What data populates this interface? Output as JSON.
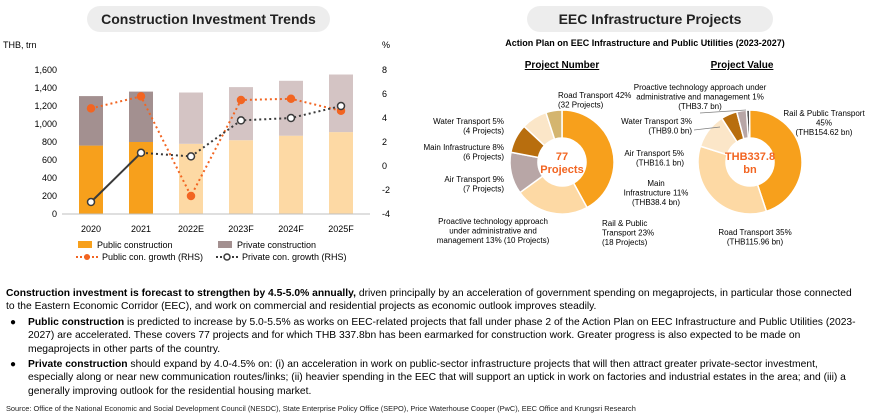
{
  "left_panel": {
    "title": "Construction Investment Trends",
    "left_axis_unit": "THB, trn",
    "right_axis_unit": "%",
    "legend": {
      "public_construction": "Public construction",
      "private_construction": "Private construction",
      "public_growth": "Public con. growth (RHS)",
      "private_growth": "Private con. growth (RHS)"
    }
  },
  "right_panel": {
    "title": "EEC Infrastructure Projects",
    "subtitle": "Action Plan on EEC Infrastructure and Public Utilities (2023-2027)",
    "number_heading": "Project Number",
    "value_heading": "Project Value",
    "number_center_line1": "77",
    "number_center_line2": "Projects",
    "value_center_line1": "THB337.8",
    "value_center_line2": "bn",
    "number_labels": [
      [
        "Road Transport 42%",
        "(32 Projects)"
      ],
      [
        "Rail & Public",
        "Transport 23%",
        "(18 Projects)"
      ],
      [
        "Proactive technology approach",
        "under administrative and",
        "management 13%  (10 Projects)"
      ],
      [
        "Air Transport 9%",
        "(7 Projects)"
      ],
      [
        "Main Infrastructure 8%",
        "(6 Projects)"
      ],
      [
        "Water Transport 5%",
        "(4 Projects)"
      ]
    ],
    "value_labels": [
      [
        "Proactive technology approach under",
        "administrative and management  1%",
        "(THB3.7 bn)"
      ],
      [
        "Rail & Public Transport",
        "45%",
        "(THB154.62 bn)"
      ],
      [
        "Road Transport 35%",
        "(THB115.96 bn)"
      ],
      [
        "Main",
        "Infrastructure 11%",
        "(THB38.4 bn)"
      ],
      [
        "Air Transport 5%",
        "(THB16.1 bn)"
      ],
      [
        "Water Transport 3%",
        "(THB9.0 bn)"
      ]
    ]
  },
  "text": {
    "intro_bold": "Construction investment is forecast to strengthen by 4.5-5.0% annually,",
    "intro_rest": " driven principally by an acceleration of government spending on megaprojects, in particular those connected to the Eastern Economic Corridor (EEC), and work on commercial and residential projects as economic outlook improves steadily.",
    "bullet1_bold": "Public construction",
    "bullet1_rest": " is predicted to increase by 5.0-5.5% as works on EEC-related projects that fall under phase 2 of the Action Plan on EEC Infrastructure and Public Utilities (2023-2027) are accelerated. These covers 77 projects and for which THB 337.8bn has been earmarked for construction work. Greater progress is also expected to be made on megaprojects in other parts of the country.",
    "bullet2_bold": "Private construction",
    "bullet2_rest": " should expand by 4.0-4.5% on: (i) an acceleration in work on public-sector infrastructure projects that will then attract greater private-sector investment, especially along or near new communication routes/links; (ii) heavier spending in the EEC that will support an uptick in work on factories and industrial estates in the area; and (iii) a generally improving outlook for the residential housing market.",
    "bullet_symbol": "●",
    "source": "Source: Office of the National Economic and Social Development Council (NESDC), State Enterprise Policy Office (SEPO), Price Waterhouse Cooper (PwC), EEC Office and Krungsri Research"
  },
  "colors": {
    "public_bar": "#f7a01c",
    "public_bar_forecast": "#fdd9a4",
    "private_bar": "#a39090",
    "private_bar_forecast": "#d4c4c4",
    "public_line": "#f26522",
    "private_line": "#3a3a3a",
    "panel_pill": "#ededed"
  },
  "chart_data": [
    {
      "type": "bar",
      "stacked": true,
      "categories": [
        "2020",
        "2021",
        "2022E",
        "2023F",
        "2024F",
        "2025F"
      ],
      "series": [
        {
          "name": "Public construction",
          "values": [
            760,
            800,
            780,
            820,
            870,
            910
          ]
        },
        {
          "name": "Private construction",
          "values": [
            550,
            560,
            570,
            590,
            610,
            640
          ]
        }
      ],
      "line_series_rhs": [
        {
          "name": "Public con. growth (RHS)",
          "values": [
            4.8,
            5.8,
            -2.5,
            5.5,
            5.6,
            4.6
          ]
        },
        {
          "name": "Private con. growth (RHS)",
          "values": [
            -3.0,
            1.1,
            0.8,
            3.8,
            4.0,
            5.0
          ]
        }
      ],
      "y_ticks": [
        "0",
        "200",
        "400",
        "600",
        "800",
        "1,000",
        "1,200",
        "1,400",
        "1,600"
      ],
      "ylim": [
        0,
        1600
      ],
      "y2_ticks": [
        "-4",
        "-2",
        "0",
        "2",
        "4",
        "6",
        "8"
      ],
      "y2lim": [
        -4,
        8
      ],
      "grid": false,
      "legend_position": "bottom"
    },
    {
      "type": "pie",
      "style": "donut",
      "title": "Project Number",
      "labels": [
        "Road Transport",
        "Rail & Public Transport",
        "Proactive technology approach under administrative and management",
        "Air Transport",
        "Main Infrastructure",
        "Water Transport"
      ],
      "values": [
        42,
        23,
        13,
        9,
        8,
        5
      ],
      "colors": [
        "#f7a01c",
        "#fdd9a4",
        "#b8a6a6",
        "#b86e0e",
        "#fbe6c8",
        "#d4b56f"
      ]
    },
    {
      "type": "pie",
      "style": "donut",
      "title": "Project Value",
      "labels": [
        "Proactive technology approach under administrative and management",
        "Rail & Public Transport",
        "Road Transport",
        "Main Infrastructure",
        "Air Transport",
        "Water Transport"
      ],
      "values": [
        1,
        45,
        35,
        11,
        5,
        3
      ],
      "colors": [
        "#3a3a3a",
        "#f7a01c",
        "#fdd9a4",
        "#fbe6c8",
        "#b86e0e",
        "#b8a6a6"
      ]
    }
  ]
}
